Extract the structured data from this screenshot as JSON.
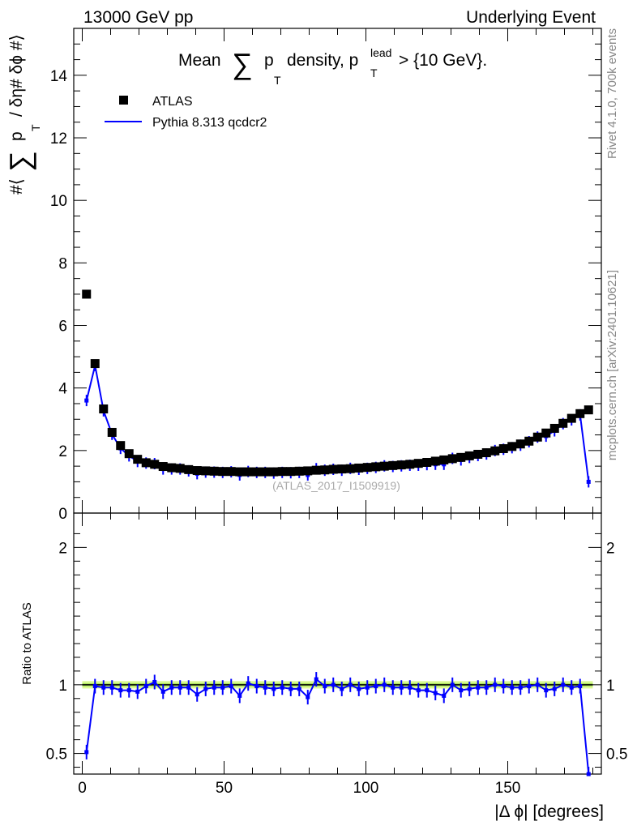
{
  "header": {
    "left": "13000 GeV pp",
    "right": "Underlying Event"
  },
  "side_labels": {
    "rivet": "Rivet 4.1.0,  700k events",
    "mcplots": "mcplots.cern.ch [arXiv:2401.10621]"
  },
  "chart_data": [
    {
      "type": "scatter",
      "panel": "main",
      "title": {
        "prefix": "Mean",
        "sum": "∑",
        "p": "p",
        "t": "T",
        "middle": "density, p",
        "lead": "lead",
        "lead_t": "T",
        "suffix": "> {10 GeV}."
      },
      "ylabel": {
        "hash_l": "#⟨",
        "sum": "∑",
        "p": "p",
        "t": "T",
        "rest": "/ δη# δϕ #⟩"
      },
      "watermark": "(ATLAS_2017_I1509919)",
      "xlim": [
        -3,
        183
      ],
      "ylim": [
        0,
        15.5
      ],
      "yticks": [
        "0",
        "2",
        "4",
        "6",
        "8",
        "10",
        "12",
        "14"
      ],
      "legend": {
        "position": "top-left",
        "entries": [
          {
            "label": "ATLAS",
            "marker": "square",
            "color": "#000000"
          },
          {
            "label": "Pythia 8.313 qcdcr2",
            "marker": "line",
            "color": "#0000ff"
          }
        ]
      },
      "series": [
        {
          "name": "ATLAS",
          "x": [
            1.5,
            4.5,
            7.5,
            10.5,
            13.5,
            16.5,
            19.5,
            22.5,
            25.5,
            28.5,
            31.5,
            34.5,
            37.5,
            40.5,
            43.5,
            46.5,
            49.5,
            52.5,
            55.5,
            58.5,
            61.5,
            64.5,
            67.5,
            70.5,
            73.5,
            76.5,
            79.5,
            82.5,
            85.5,
            88.5,
            91.5,
            94.5,
            97.5,
            100.5,
            103.5,
            106.5,
            109.5,
            112.5,
            115.5,
            118.5,
            121.5,
            124.5,
            127.5,
            130.5,
            133.5,
            136.5,
            139.5,
            142.5,
            145.5,
            148.5,
            151.5,
            154.5,
            157.5,
            160.5,
            163.5,
            166.5,
            169.5,
            172.5,
            175.5,
            178.5
          ],
          "y": [
            7.0,
            4.78,
            3.33,
            2.58,
            2.16,
            1.9,
            1.72,
            1.61,
            1.56,
            1.49,
            1.45,
            1.43,
            1.39,
            1.36,
            1.35,
            1.34,
            1.33,
            1.33,
            1.32,
            1.32,
            1.32,
            1.32,
            1.32,
            1.33,
            1.33,
            1.34,
            1.35,
            1.37,
            1.38,
            1.4,
            1.41,
            1.42,
            1.44,
            1.46,
            1.48,
            1.5,
            1.52,
            1.54,
            1.56,
            1.59,
            1.62,
            1.66,
            1.7,
            1.74,
            1.78,
            1.83,
            1.88,
            1.93,
            1.99,
            2.06,
            2.13,
            2.21,
            2.3,
            2.43,
            2.56,
            2.71,
            2.87,
            3.03,
            3.18,
            3.3
          ]
        },
        {
          "name": "Pythia 8.313 qcdcr2",
          "x": [
            1.5,
            4.5,
            7.5,
            10.5,
            13.5,
            16.5,
            19.5,
            22.5,
            25.5,
            28.5,
            31.5,
            34.5,
            37.5,
            40.5,
            43.5,
            46.5,
            49.5,
            52.5,
            55.5,
            58.5,
            61.5,
            64.5,
            67.5,
            70.5,
            73.5,
            76.5,
            79.5,
            82.5,
            85.5,
            88.5,
            91.5,
            94.5,
            97.5,
            100.5,
            103.5,
            106.5,
            109.5,
            112.5,
            115.5,
            118.5,
            121.5,
            124.5,
            127.5,
            130.5,
            133.5,
            136.5,
            139.5,
            142.5,
            145.5,
            148.5,
            151.5,
            154.5,
            157.5,
            160.5,
            163.5,
            166.5,
            169.5,
            172.5,
            175.5,
            178.5
          ],
          "y": [
            3.6,
            4.72,
            3.27,
            2.52,
            2.07,
            1.83,
            1.65,
            1.6,
            1.58,
            1.41,
            1.41,
            1.41,
            1.35,
            1.26,
            1.31,
            1.31,
            1.3,
            1.32,
            1.22,
            1.33,
            1.3,
            1.3,
            1.28,
            1.3,
            1.29,
            1.3,
            1.22,
            1.42,
            1.37,
            1.4,
            1.37,
            1.43,
            1.4,
            1.43,
            1.46,
            1.51,
            1.49,
            1.51,
            1.53,
            1.53,
            1.55,
            1.56,
            1.56,
            1.75,
            1.7,
            1.78,
            1.84,
            1.89,
            2.0,
            2.04,
            2.09,
            2.17,
            2.28,
            2.43,
            2.46,
            2.63,
            2.86,
            2.98,
            3.14,
            1.0
          ]
        }
      ]
    },
    {
      "type": "line",
      "panel": "ratio",
      "ylabel": "Ratio to ATLAS",
      "xlabel": "|Δ ϕ| [degrees]",
      "xlim": [
        -3,
        183
      ],
      "ylim": [
        0.35,
        2.25
      ],
      "xticks": [
        "0",
        "50",
        "100",
        "150"
      ],
      "yticks": [
        "0.5",
        "1",
        "2"
      ],
      "band": {
        "center": 1.0,
        "outer_halfwidth": 0.027,
        "inner_halfwidth": 0.012,
        "outer_color": "#dcfa96",
        "inner_color": "#a8e258"
      },
      "series": [
        {
          "name": "Pythia 8.313 qcdcr2",
          "color": "#0000ff",
          "x": [
            1.5,
            4.5,
            7.5,
            10.5,
            13.5,
            16.5,
            19.5,
            22.5,
            25.5,
            28.5,
            31.5,
            34.5,
            37.5,
            40.5,
            43.5,
            46.5,
            49.5,
            52.5,
            55.5,
            58.5,
            61.5,
            64.5,
            67.5,
            70.5,
            73.5,
            76.5,
            79.5,
            82.5,
            85.5,
            88.5,
            91.5,
            94.5,
            97.5,
            100.5,
            103.5,
            106.5,
            109.5,
            112.5,
            115.5,
            118.5,
            121.5,
            124.5,
            127.5,
            130.5,
            133.5,
            136.5,
            139.5,
            142.5,
            145.5,
            148.5,
            151.5,
            154.5,
            157.5,
            160.5,
            163.5,
            166.5,
            169.5,
            172.5,
            175.5,
            178.5
          ],
          "y": [
            0.51,
            0.99,
            0.98,
            0.98,
            0.96,
            0.96,
            0.95,
            0.99,
            1.02,
            0.95,
            0.98,
            0.98,
            0.98,
            0.93,
            0.97,
            0.98,
            0.98,
            0.99,
            0.92,
            1.01,
            0.99,
            0.98,
            0.97,
            0.98,
            0.97,
            0.97,
            0.91,
            1.04,
            0.99,
            1.0,
            0.97,
            1.0,
            0.97,
            0.98,
            0.99,
            1.0,
            0.98,
            0.98,
            0.98,
            0.96,
            0.96,
            0.94,
            0.92,
            1.0,
            0.96,
            0.97,
            0.98,
            0.98,
            1.0,
            0.99,
            0.98,
            0.98,
            0.99,
            1.0,
            0.96,
            0.97,
            1.0,
            0.98,
            0.99,
            0.3
          ]
        }
      ]
    }
  ]
}
